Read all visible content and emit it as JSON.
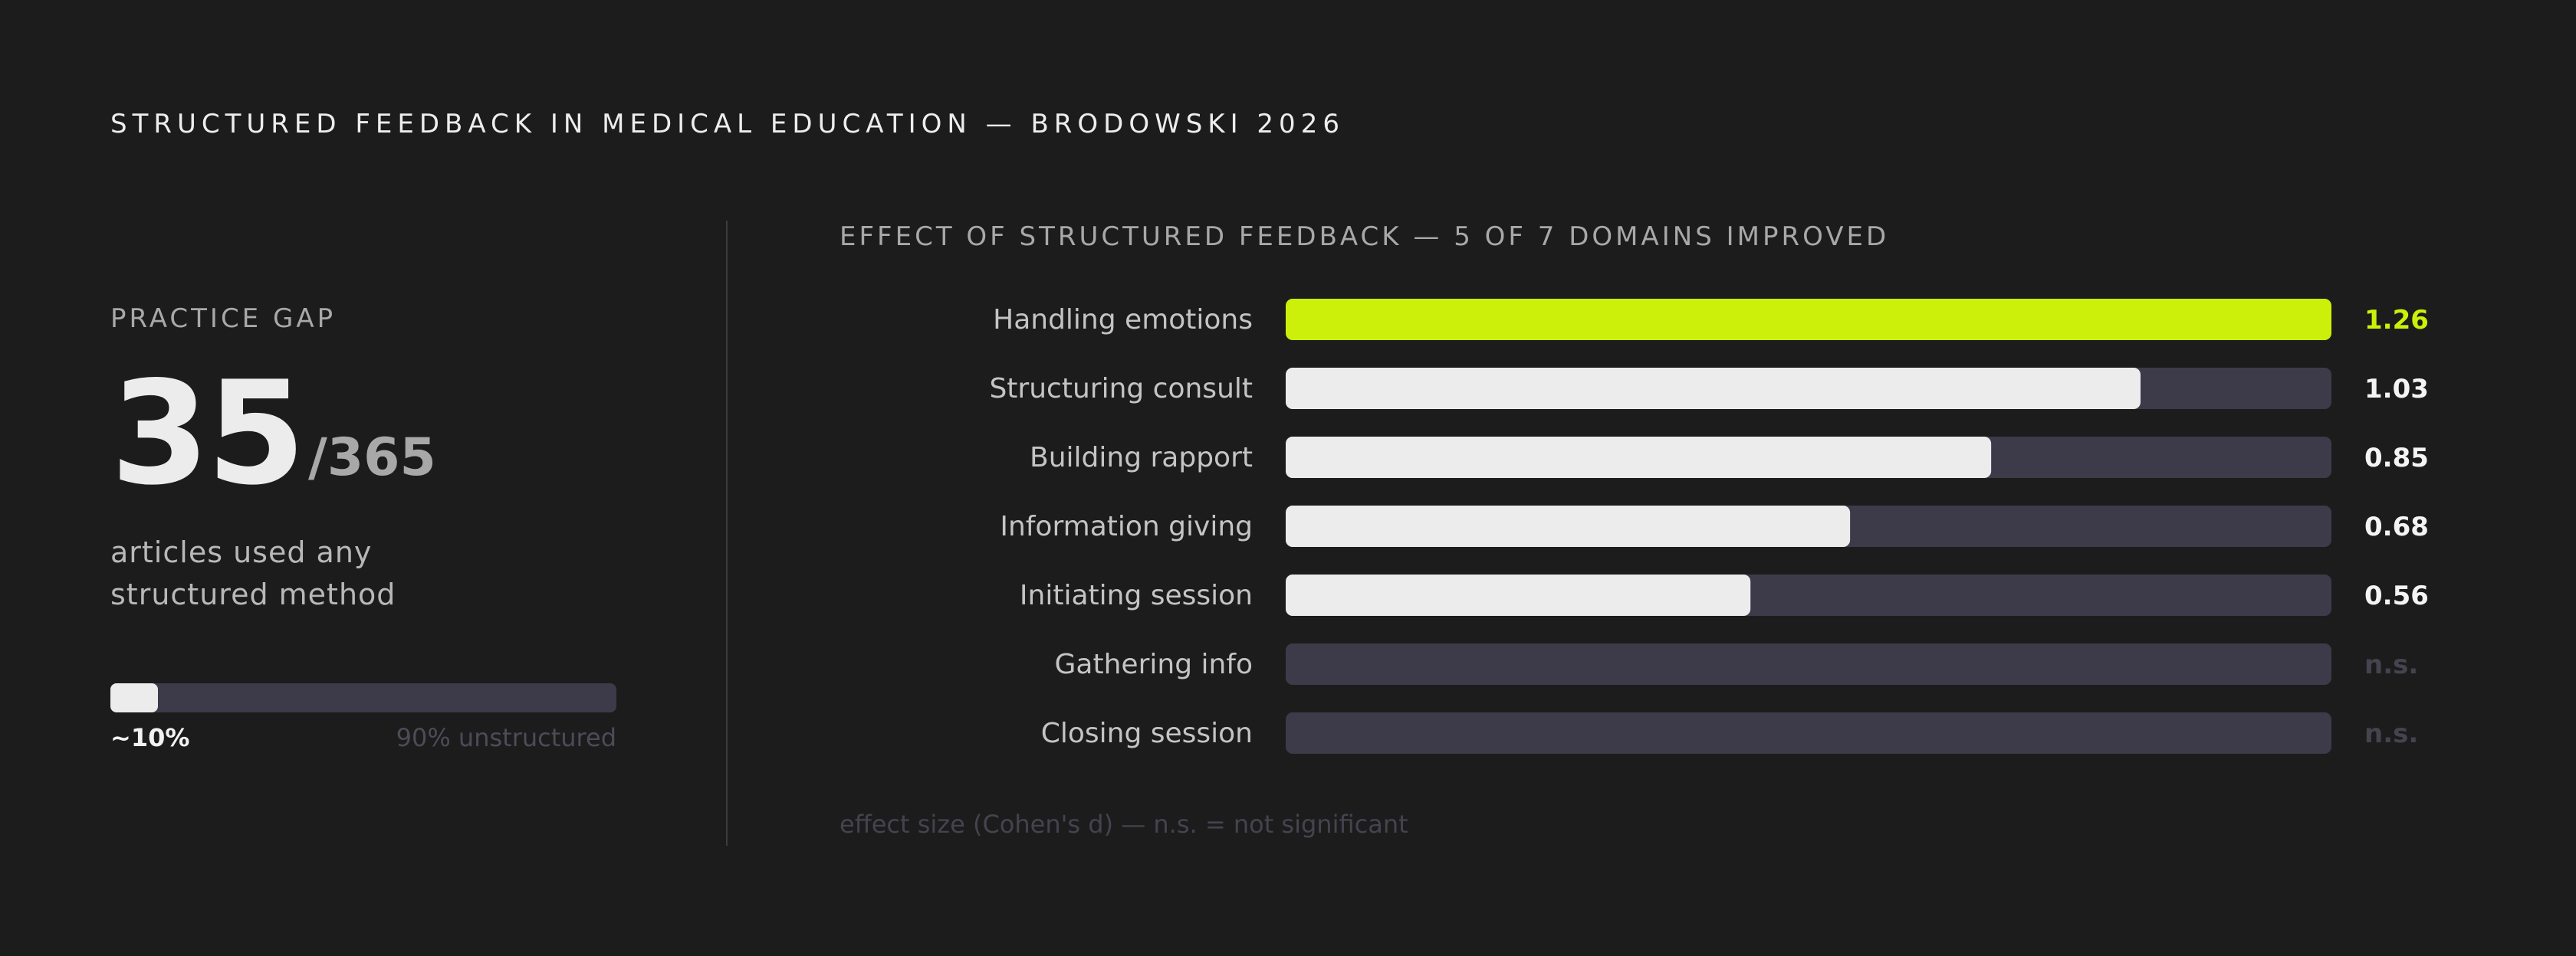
{
  "page": {
    "title": "STRUCTURED FEEDBACK IN MEDICAL EDUCATION — BRODOWSKI 2026"
  },
  "practice_gap": {
    "label": "PRACTICE GAP",
    "count": "35",
    "total": "/365",
    "description": "articles used any structured method",
    "bar_fraction": 0.1,
    "bar_value_label": "~10%",
    "bar_remainder_label": "90% unstructured"
  },
  "chart_data": {
    "type": "bar",
    "orientation": "horizontal",
    "title": "EFFECT OF STRUCTURED FEEDBACK — 5 OF 7 DOMAINS IMPROVED",
    "categories": [
      "Handling emotions",
      "Structuring consult",
      "Building rapport",
      "Information giving",
      "Initiating session",
      "Gathering info",
      "Closing session"
    ],
    "values": [
      1.26,
      1.03,
      0.85,
      0.68,
      0.56,
      null,
      null
    ],
    "value_labels": [
      "1.26",
      "1.03",
      "0.85",
      "0.68",
      "0.56",
      "n.s.",
      "n.s."
    ],
    "xlim": [
      0,
      1.26
    ],
    "highlight_index": 0,
    "note": "effect size (Cohen's d) — n.s. = not significant",
    "colors": {
      "highlight": "#ccf00a",
      "bar": "#ececec",
      "track": "#3d3b4a",
      "label": "#c4c4c4",
      "value": "#f4f4f4",
      "ns": "#45434f"
    }
  }
}
